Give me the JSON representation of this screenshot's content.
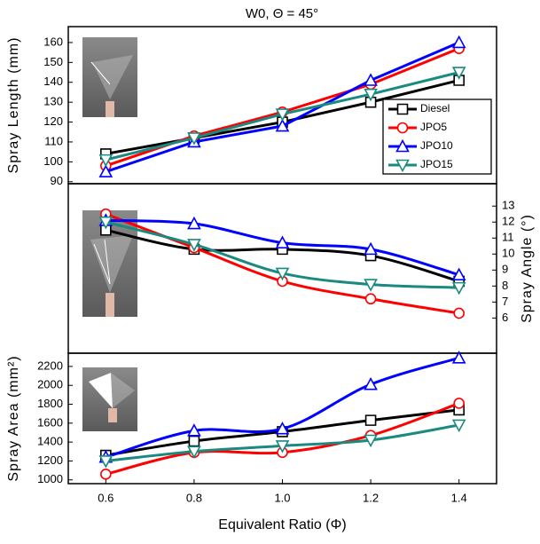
{
  "chart_data": [
    {
      "type": "line",
      "title": "W0, Θ = 45°",
      "y_label": "Spray Length (mm)",
      "yaxis_side": "left",
      "smooth": false,
      "x": [
        0.6,
        0.8,
        1.0,
        1.2,
        1.4
      ],
      "xlim": [
        0.515,
        1.485
      ],
      "ylim": [
        89,
        168
      ],
      "yticks": [
        90,
        100,
        110,
        120,
        130,
        140,
        150,
        160
      ],
      "legend": "right",
      "series": [
        {
          "name": "Diesel",
          "color": "#000000",
          "marker": "square",
          "values": [
            104,
            112,
            120,
            130,
            141
          ]
        },
        {
          "name": "JPO5",
          "color": "#ff0000",
          "marker": "circle",
          "values": [
            98,
            113,
            125,
            139,
            157
          ]
        },
        {
          "name": "JPO10",
          "color": "#0000ff",
          "marker": "triangle-up",
          "values": [
            95,
            110,
            118,
            141,
            160
          ]
        },
        {
          "name": "JPO15",
          "color": "#1a8a80",
          "marker": "triangle-down",
          "values": [
            101,
            112,
            124,
            134,
            145
          ]
        }
      ]
    },
    {
      "type": "line",
      "y_label": "Spray Angle (°)",
      "yaxis_side": "right",
      "smooth": true,
      "x": [
        0.6,
        0.8,
        1.0,
        1.2,
        1.4
      ],
      "xlim": [
        0.515,
        1.485
      ],
      "ylim": [
        3.8,
        14.4
      ],
      "yticks": [
        6,
        7,
        8,
        9,
        10,
        11,
        12,
        13
      ],
      "series": [
        {
          "color": "#000000",
          "marker": "square",
          "values": [
            11.5,
            10.3,
            10.3,
            9.9,
            8.3
          ]
        },
        {
          "color": "#ff0000",
          "marker": "circle",
          "values": [
            12.5,
            10.4,
            8.3,
            7.2,
            6.3
          ]
        },
        {
          "color": "#0000ff",
          "marker": "triangle-up",
          "values": [
            12.1,
            11.9,
            10.7,
            10.3,
            8.7
          ]
        },
        {
          "color": "#1a8a80",
          "marker": "triangle-down",
          "values": [
            12.0,
            10.6,
            8.8,
            8.1,
            7.9
          ]
        }
      ]
    },
    {
      "type": "line",
      "y_label": "Spray Area (mm²)",
      "x_label": "Equivalent Ratio (Φ)",
      "yaxis_side": "left",
      "smooth": true,
      "x": [
        0.6,
        0.8,
        1.0,
        1.2,
        1.4
      ],
      "xlim": [
        0.515,
        1.485
      ],
      "xticks": [
        0.6,
        0.8,
        {
          "value": 1.0,
          "label": "1.0"
        },
        1.2,
        1.4
      ],
      "ylim": [
        960,
        2340
      ],
      "yticks": [
        1000,
        1200,
        1400,
        1600,
        1800,
        2000,
        2200
      ],
      "series": [
        {
          "color": "#000000",
          "marker": "square",
          "values": [
            1260,
            1410,
            1510,
            1630,
            1740
          ]
        },
        {
          "color": "#ff0000",
          "marker": "circle",
          "values": [
            1060,
            1290,
            1290,
            1470,
            1810
          ]
        },
        {
          "color": "#0000ff",
          "marker": "triangle-up",
          "values": [
            1240,
            1520,
            1540,
            2010,
            2290
          ]
        },
        {
          "color": "#1a8a80",
          "marker": "triangle-down",
          "values": [
            1200,
            1300,
            1360,
            1420,
            1580
          ]
        }
      ]
    }
  ]
}
